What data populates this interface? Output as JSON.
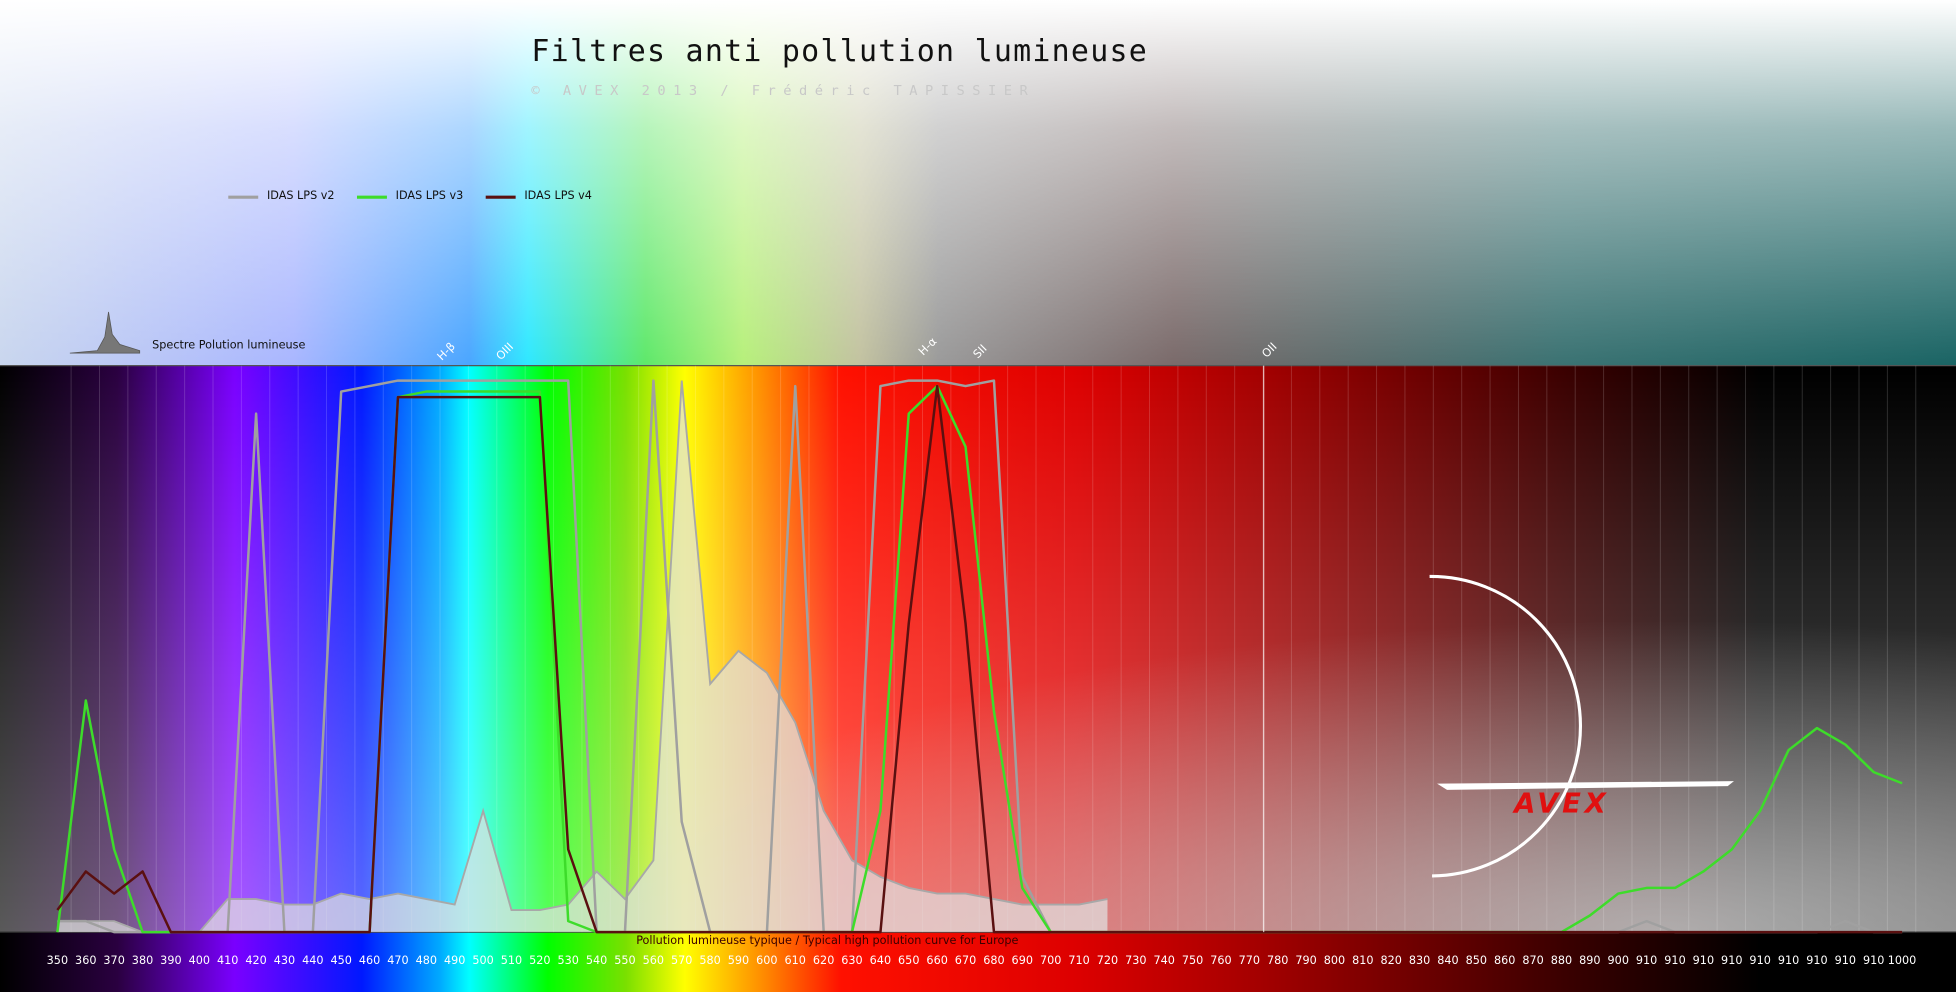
{
  "chart_data": {
    "type": "line",
    "title": "Filtres anti pollution lumineuse",
    "subtitle": "© AVEX 2013 / Frédéric TAPISSIER",
    "note": "Pollution lumineuse typique / Typical high pollution curve for Europe",
    "legend": "top-left",
    "categories": [
      "350",
      "360",
      "370",
      "380",
      "390",
      "400",
      "410",
      "420",
      "430",
      "440",
      "450",
      "460",
      "470",
      "480",
      "490",
      "500",
      "510",
      "520",
      "530",
      "540",
      "550",
      "560",
      "570",
      "580",
      "590",
      "600",
      "610",
      "620",
      "630",
      "640",
      "650",
      "660",
      "670",
      "680",
      "690",
      "700",
      "710",
      "720",
      "730",
      "740",
      "750",
      "760",
      "770",
      "780",
      "790",
      "800",
      "810",
      "820",
      "830",
      "840",
      "850",
      "860",
      "870",
      "880",
      "890",
      "900",
      "910",
      "910",
      "910",
      "910",
      "910",
      "910",
      "910",
      "910",
      "910",
      "1000"
    ],
    "ylim": [
      0,
      100
    ],
    "series": [
      {
        "name": "Spectre Polution lumineuse",
        "style": "area",
        "color": "#a8a8a8",
        "values": [
          2,
          2,
          2,
          0,
          0,
          0,
          6,
          6,
          5,
          5,
          7,
          6,
          7,
          6,
          5,
          22,
          4,
          4,
          5,
          11,
          6,
          13,
          100,
          45,
          51,
          47,
          38,
          22,
          13,
          10,
          8,
          7,
          7,
          6,
          5,
          5,
          5,
          6,
          null,
          null,
          null,
          null,
          null,
          null,
          null,
          null,
          null,
          null,
          null,
          null,
          null,
          null,
          null,
          null,
          null,
          null,
          null,
          null,
          null,
          null,
          null,
          null,
          null,
          null,
          null,
          null
        ]
      },
      {
        "name": "IDAS LPS v2",
        "style": "line",
        "color": "#a0a0a0",
        "values": [
          2,
          2,
          0,
          0,
          0,
          0,
          0,
          94,
          0,
          0,
          98,
          99,
          100,
          100,
          100,
          100,
          100,
          100,
          100,
          0,
          0,
          100,
          20,
          0,
          0,
          0,
          99,
          0,
          0,
          99,
          100,
          100,
          99,
          100,
          10,
          0,
          0,
          0,
          0,
          0,
          0,
          0,
          0,
          0,
          0,
          0,
          0,
          0,
          0,
          0,
          0,
          0,
          0,
          0,
          0,
          0,
          2,
          0,
          0,
          0,
          0,
          0,
          0,
          2,
          0,
          0
        ]
      },
      {
        "name": "IDAS LPS v3",
        "style": "line",
        "color": "#3ddc2a",
        "values": [
          0,
          42,
          15,
          0,
          0,
          0,
          0,
          0,
          0,
          0,
          0,
          0,
          97,
          98,
          98,
          98,
          98,
          98,
          2,
          0,
          0,
          0,
          0,
          0,
          0,
          0,
          0,
          0,
          0,
          22,
          94,
          99,
          88,
          40,
          8,
          0,
          0,
          0,
          0,
          0,
          0,
          0,
          0,
          0,
          0,
          0,
          0,
          0,
          0,
          0,
          0,
          0,
          0,
          0,
          3,
          7,
          8,
          8,
          11,
          15,
          22,
          33,
          37,
          34,
          29,
          27
        ]
      },
      {
        "name": "IDAS LPS v4",
        "style": "line",
        "color": "#5a1010",
        "values": [
          4,
          11,
          7,
          11,
          0,
          0,
          0,
          0,
          0,
          0,
          0,
          0,
          97,
          97,
          97,
          97,
          97,
          97,
          15,
          0,
          0,
          0,
          0,
          0,
          0,
          0,
          0,
          0,
          0,
          0,
          56,
          99,
          56,
          0,
          0,
          0,
          0,
          0,
          0,
          0,
          0,
          0,
          0,
          0,
          0,
          0,
          0,
          0,
          0,
          0,
          0,
          0,
          0,
          0,
          0,
          0,
          0,
          0,
          0,
          0,
          0,
          0,
          0,
          0,
          0,
          0
        ]
      }
    ],
    "annotations": [
      "H-β",
      "OIII",
      "H-α",
      "SII",
      "OII"
    ]
  },
  "logo": "AVEX"
}
